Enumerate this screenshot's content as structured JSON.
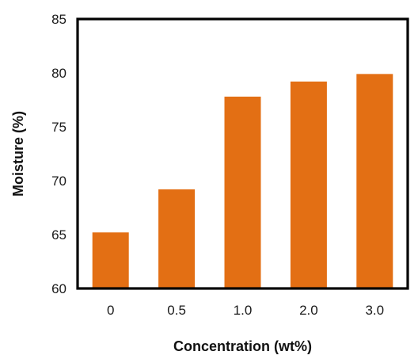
{
  "chart_data": {
    "type": "bar",
    "title": "",
    "xlabel": "Concentration (wt%)",
    "ylabel": "Moisture (%)",
    "categories": [
      "0",
      "0.5",
      "1.0",
      "2.0",
      "3.0"
    ],
    "values": [
      65.2,
      69.2,
      77.8,
      79.2,
      79.9
    ],
    "ylim": [
      60,
      85
    ],
    "yticks": [
      "60",
      "65",
      "70",
      "75",
      "80",
      "85"
    ],
    "grid": false,
    "legend": "none",
    "bar_color": "#E36F14"
  }
}
